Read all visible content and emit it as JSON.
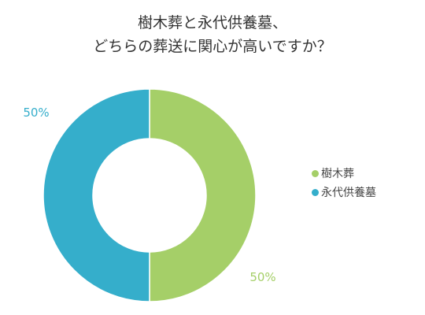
{
  "chart_data": {
    "type": "pie",
    "title_lines": [
      "樹木葬と永代供養墓、",
      "どちらの葬送に関心が高いですか？"
    ],
    "slices": [
      {
        "name": "樹木葬",
        "value": 50,
        "label": "50%",
        "color": "#a5cf68"
      },
      {
        "name": "永代供養墓",
        "value": 50,
        "label": "50%",
        "color": "#35aecb"
      }
    ],
    "legend_position": "right",
    "donut": true
  }
}
